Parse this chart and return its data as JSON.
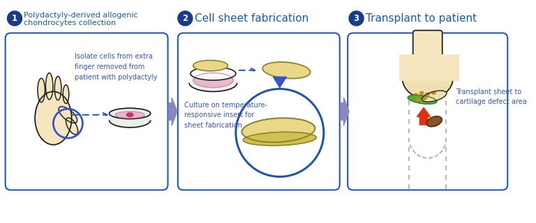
{
  "background": "#ffffff",
  "panel_border_color": "#2255bb",
  "panel_bg": "#ffffff",
  "step_circle_color": "#1a3a8a",
  "step_text_color": "#1a5aaa",
  "arrow_color": "#8888bb",
  "dotted_arrow_color": "#3355cc",
  "panel1": {
    "step": "1",
    "title_line1": "Polydactyly-derived allogenic",
    "title_line2": "chondrocytes collection",
    "annotation": "Isolate cells from extra\nfinger removed from\npatient with polydactyly"
  },
  "panel2": {
    "step": "2",
    "title": "Cell sheet fabrication",
    "annotation": "Culture on temperature-\nresponsive insert for\nsheet fabrication"
  },
  "panel3": {
    "step": "3",
    "title": "Transplant to patient",
    "annotation": "Transplant sheet to\ncartilage defect area"
  },
  "skin_color": "#f5e6c0",
  "skin_outline": "#222222",
  "dish_outline": "#222222",
  "pink_fill": "#e8b8cc",
  "sheet_color": "#e8d888",
  "sheet_outline": "#888830",
  "sheet_bottom_color": "#d4c050",
  "circle_highlight": "#2255aa",
  "green_sheet": "#55aa33",
  "red_arrow_color": "#dd3311",
  "brown_color": "#885522",
  "dots_color": "#cc8822",
  "cartilage_color": "#f0e0b0",
  "defect_dash_color": "#aaaaaa"
}
